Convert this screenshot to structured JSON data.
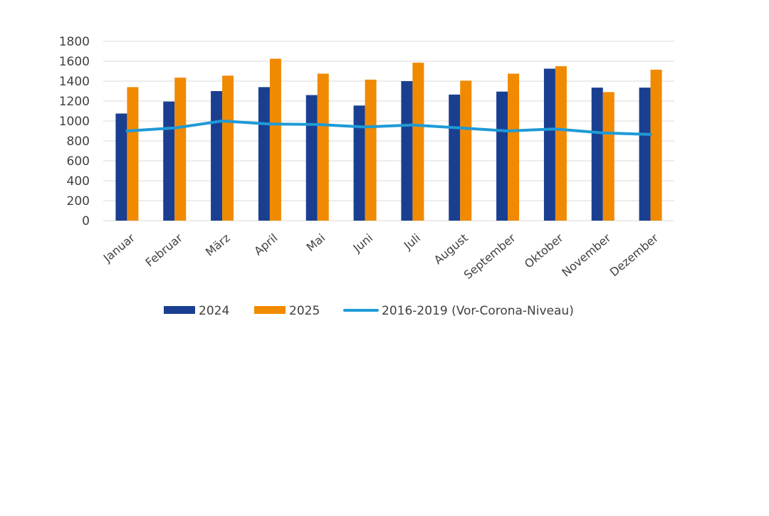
{
  "chart_data": {
    "type": "bar",
    "title": "",
    "xlabel": "",
    "ylabel": "",
    "ylim": [
      0,
      1800
    ],
    "ytick_step": 200,
    "yticks": [
      "0",
      "200",
      "400",
      "600",
      "800",
      "1000",
      "1200",
      "1400",
      "1600",
      "1800"
    ],
    "grid": true,
    "legend_position": "bottom",
    "categories": [
      "Januar",
      "Februar",
      "März",
      "April",
      "Mai",
      "Juni",
      "Juli",
      "August",
      "September",
      "Oktober",
      "November",
      "Dezember"
    ],
    "series": [
      {
        "name": "2024",
        "kind": "bar",
        "color": "#1a3f91",
        "values": [
          1075,
          1195,
          1300,
          1340,
          1260,
          1155,
          1400,
          1265,
          1295,
          1525,
          1335,
          1335
        ]
      },
      {
        "name": "2025",
        "kind": "bar",
        "color": "#f08a00",
        "values": [
          1340,
          1435,
          1455,
          1625,
          1475,
          1415,
          1585,
          1405,
          1475,
          1550,
          1290,
          1515
        ]
      },
      {
        "name": "2016-2019 (Vor-Corona-Niveau)",
        "kind": "line",
        "color": "#1f9ad6",
        "values": [
          900,
          930,
          1000,
          970,
          965,
          940,
          960,
          930,
          900,
          920,
          880,
          865
        ]
      }
    ]
  }
}
